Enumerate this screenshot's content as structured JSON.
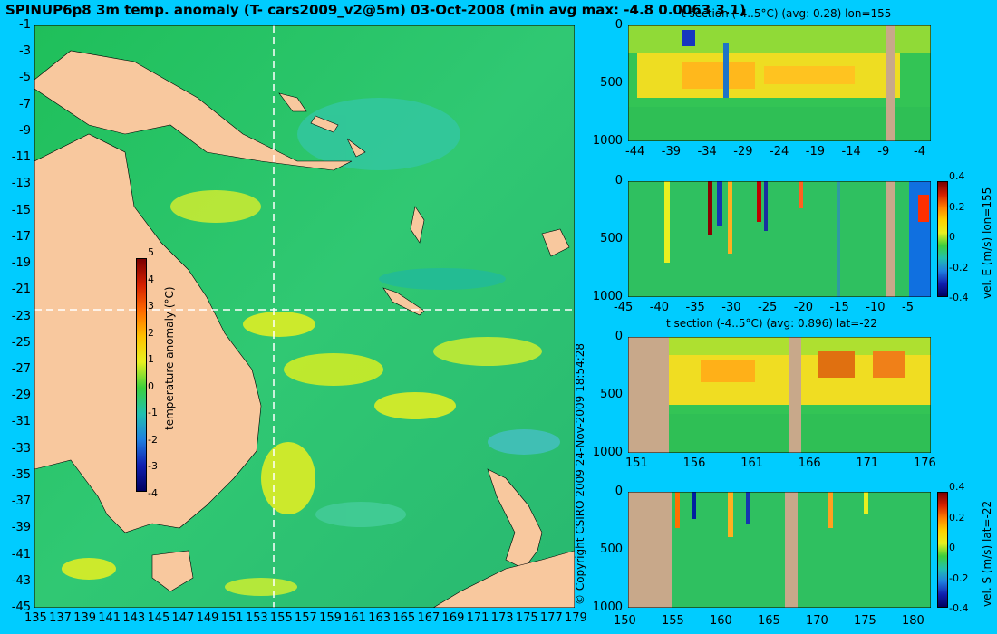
{
  "title": "SPINUP6p8 3m temp. anomaly (T- cars2009_v2@5m) 03-Oct-2008 (min avg max: -4.8 0.0063 3.1)",
  "copyright": "© Copyright CSIRO 2009   24-Nov-2009 18:54:28",
  "map": {
    "lat_ticks": [
      "-1",
      "-3",
      "-5",
      "-7",
      "-9",
      "-11",
      "-13",
      "-15",
      "-17",
      "-19",
      "-21",
      "-23",
      "-25",
      "-27",
      "-29",
      "-31",
      "-33",
      "-35",
      "-37",
      "-39",
      "-41",
      "-43",
      "-45"
    ],
    "lon_ticks": [
      "135",
      "137",
      "139",
      "141",
      "143",
      "145",
      "147",
      "149",
      "151",
      "153",
      "155",
      "157",
      "159",
      "161",
      "163",
      "165",
      "167",
      "169",
      "171",
      "173",
      "175",
      "177",
      "179"
    ],
    "section_lon": 155,
    "section_lat": -22,
    "colorbar": {
      "label": "temperature anomaly (°C)",
      "ticks": [
        "5",
        "4",
        "3",
        "2",
        "1",
        "0",
        "-1",
        "-2",
        "-3",
        "-4"
      ]
    },
    "colors": {
      "ocean": "#2fc46a",
      "land": "#f8c89e",
      "background": "#00ccff"
    }
  },
  "sections": [
    {
      "title": "t section (-4..5°C) (avg: 0.28) lon=155",
      "y_ticks": [
        "0",
        "500",
        "1000"
      ],
      "x_ticks": [
        "-44",
        "-39",
        "-34",
        "-29",
        "-24",
        "-19",
        "-14",
        "-9",
        "-4"
      ],
      "colorbar_label": ""
    },
    {
      "title": "",
      "y_ticks": [
        "0",
        "500",
        "1000"
      ],
      "x_ticks": [
        "-45",
        "-40",
        "-35",
        "-30",
        "-25",
        "-20",
        "-15",
        "-10",
        "-5"
      ],
      "colorbar_label": "vel. E (m/s) lon=155",
      "colorbar_ticks": [
        "0.4",
        "0.2",
        "0",
        "-0.2",
        "-0.4"
      ]
    },
    {
      "title": "t section (-4..5°C) (avg: 0.896) lat=-22",
      "y_ticks": [
        "0",
        "500",
        "1000"
      ],
      "x_ticks": [
        "151",
        "156",
        "161",
        "166",
        "171",
        "176"
      ],
      "colorbar_label": ""
    },
    {
      "title": "",
      "y_ticks": [
        "0",
        "500",
        "1000"
      ],
      "x_ticks": [
        "150",
        "155",
        "160",
        "165",
        "170",
        "175",
        "180"
      ],
      "colorbar_label": "vel. S (m/s) lat=-22",
      "colorbar_ticks": [
        "0.4",
        "0.2",
        "0",
        "-0.2",
        "-0.4"
      ]
    }
  ]
}
